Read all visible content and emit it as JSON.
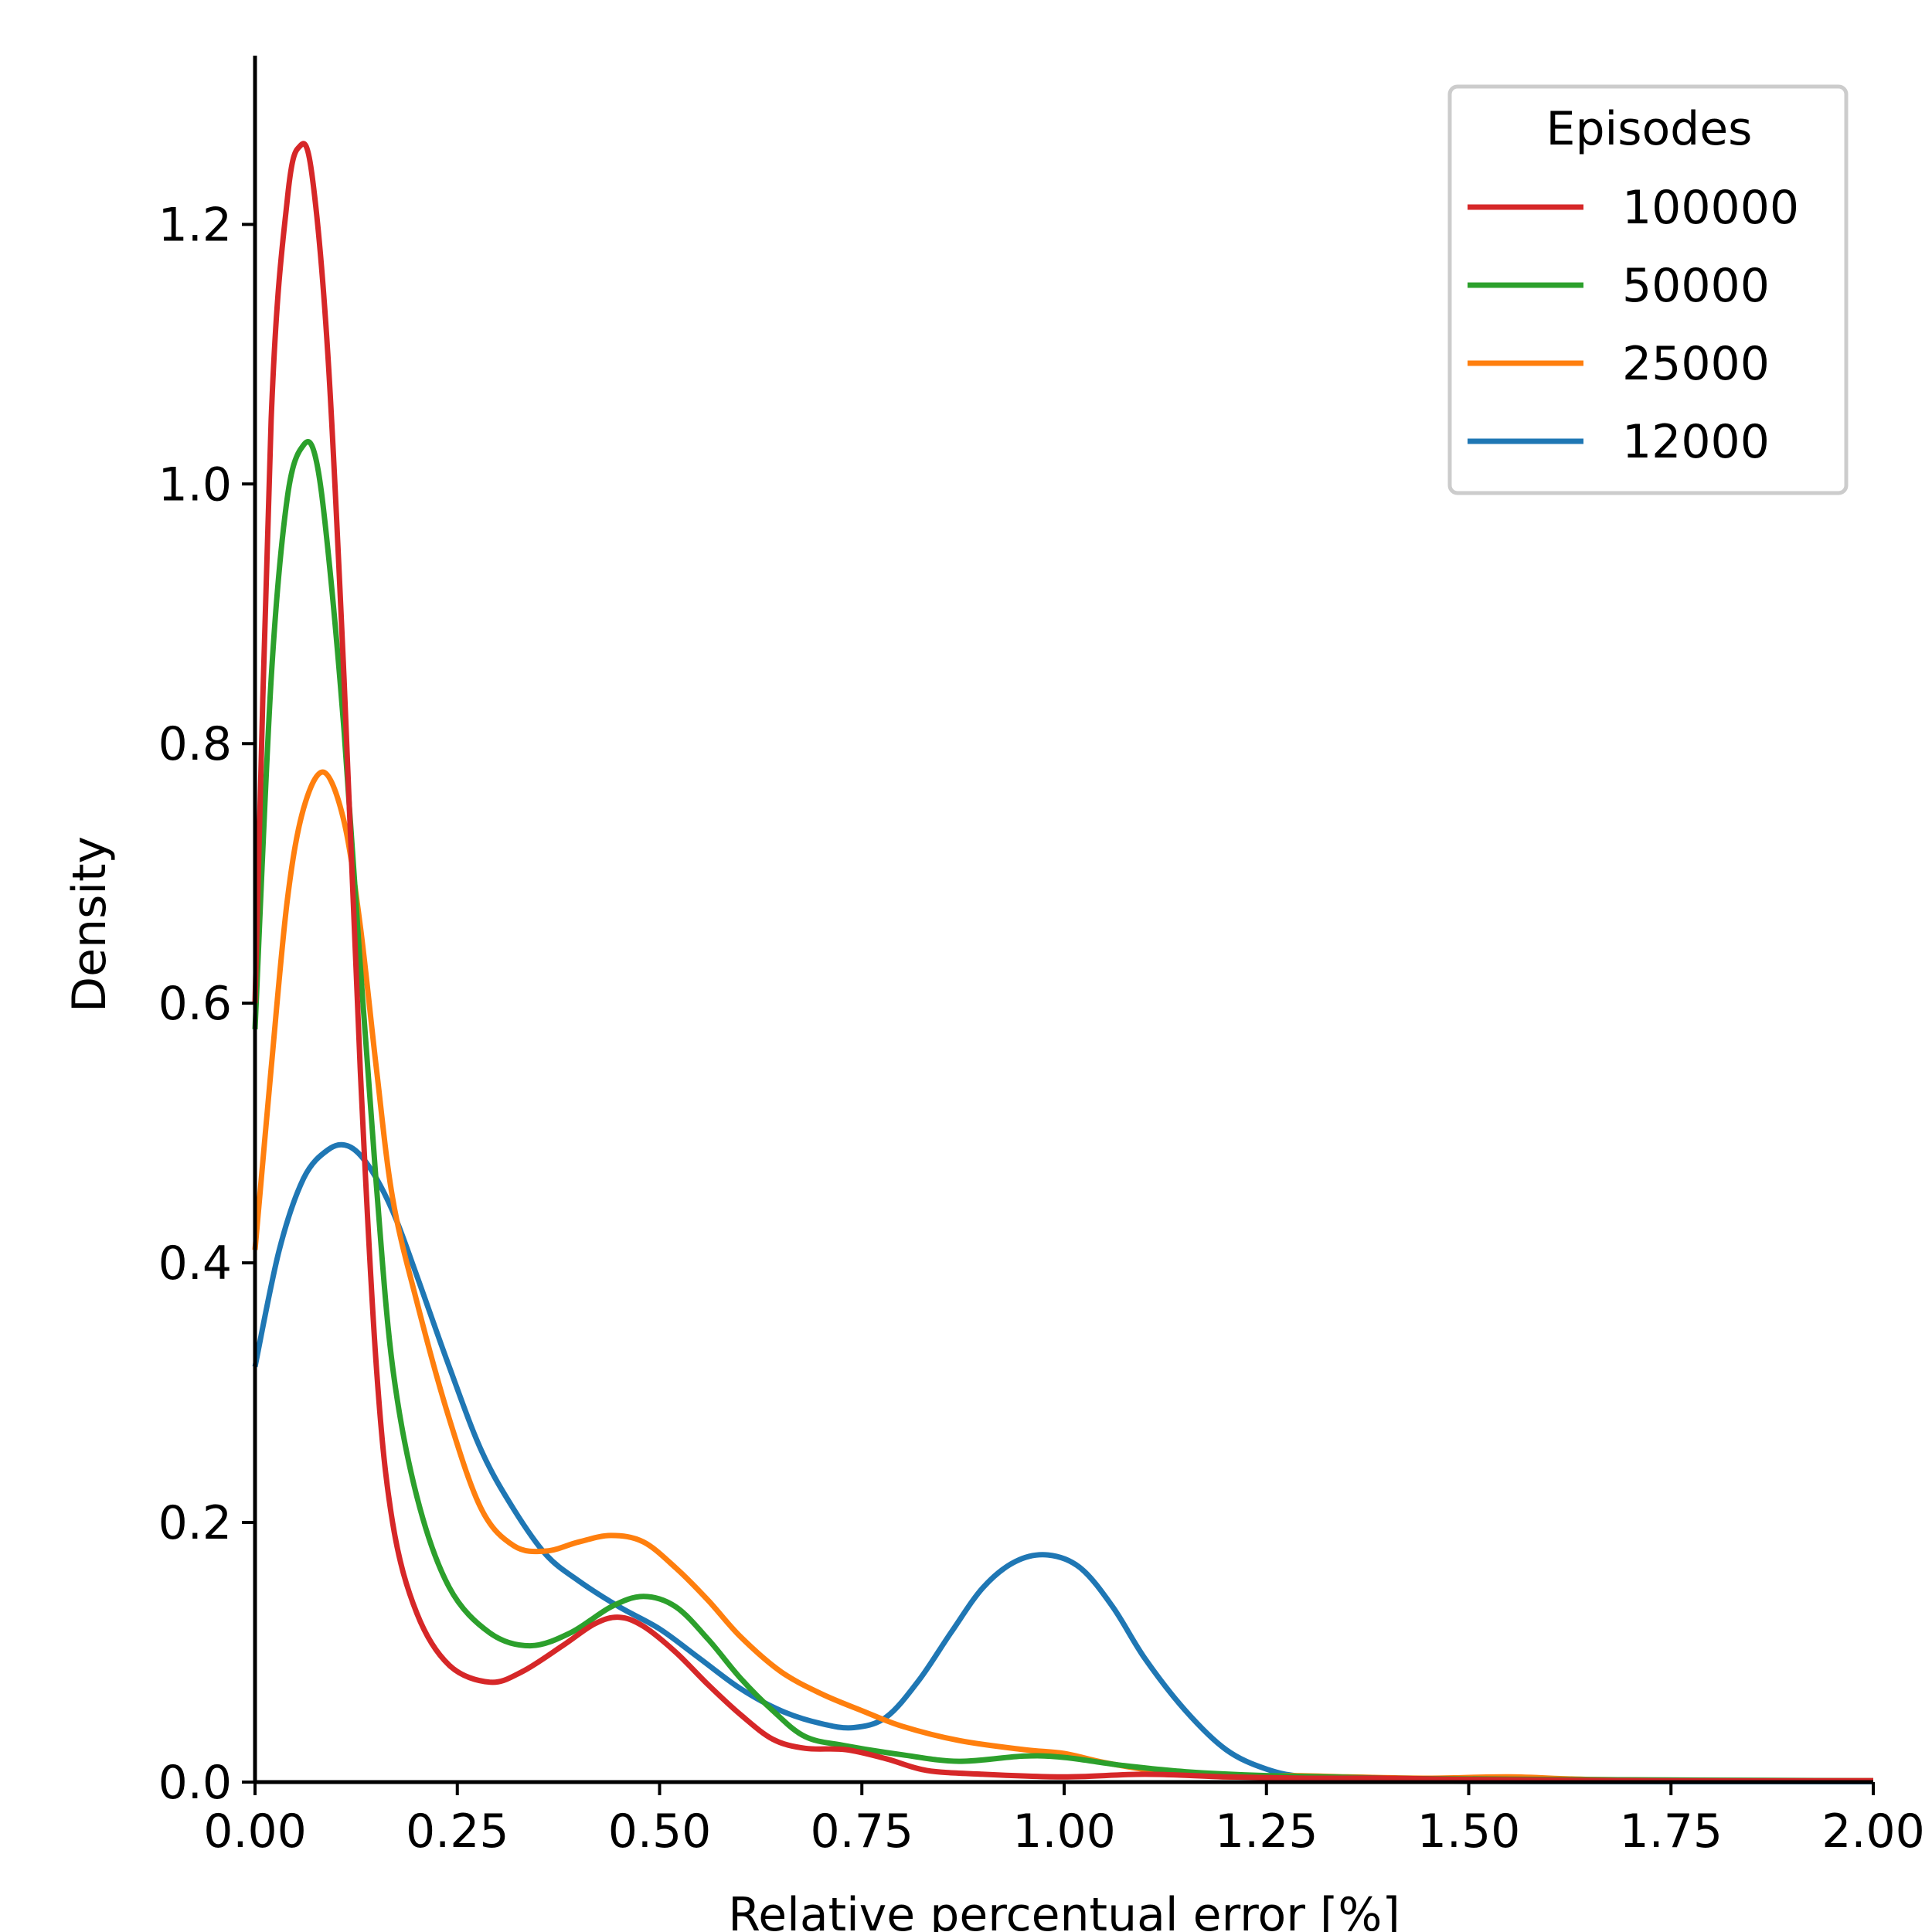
{
  "chart_data": {
    "type": "line",
    "xlabel": "Relative percentual error [%]",
    "ylabel": "Density",
    "xlim": [
      0,
      2.0
    ],
    "ylim": [
      0,
      1.33
    ],
    "xticks": [
      "0.00",
      "0.25",
      "0.50",
      "0.75",
      "1.00",
      "1.25",
      "1.50",
      "1.75",
      "2.00"
    ],
    "yticks": [
      "0.0",
      "0.2",
      "0.4",
      "0.6",
      "0.8",
      "1.0",
      "1.2"
    ],
    "grid": false,
    "legend": {
      "title": "Episodes",
      "position": "top-right"
    },
    "series": [
      {
        "name": "100000",
        "color": "#d62728",
        "points": [
          [
            0,
            0.6
          ],
          [
            0.02,
            1.05
          ],
          [
            0.04,
            1.22
          ],
          [
            0.055,
            1.26
          ],
          [
            0.07,
            1.24
          ],
          [
            0.09,
            1.1
          ],
          [
            0.11,
            0.85
          ],
          [
            0.13,
            0.55
          ],
          [
            0.15,
            0.32
          ],
          [
            0.17,
            0.2
          ],
          [
            0.2,
            0.13
          ],
          [
            0.24,
            0.09
          ],
          [
            0.29,
            0.077
          ],
          [
            0.33,
            0.085
          ],
          [
            0.38,
            0.105
          ],
          [
            0.42,
            0.122
          ],
          [
            0.45,
            0.127
          ],
          [
            0.48,
            0.12
          ],
          [
            0.52,
            0.1
          ],
          [
            0.56,
            0.075
          ],
          [
            0.6,
            0.052
          ],
          [
            0.64,
            0.033
          ],
          [
            0.68,
            0.026
          ],
          [
            0.73,
            0.025
          ],
          [
            0.78,
            0.018
          ],
          [
            0.83,
            0.009
          ],
          [
            0.9,
            0.006
          ],
          [
            1.0,
            0.004
          ],
          [
            1.1,
            0.006
          ],
          [
            1.2,
            0.004
          ],
          [
            1.3,
            0.003
          ],
          [
            1.4,
            0.003
          ],
          [
            1.5,
            0.002
          ],
          [
            1.75,
            0.001
          ],
          [
            2.0,
            0.001
          ]
        ]
      },
      {
        "name": "50000",
        "color": "#2ca02c",
        "points": [
          [
            0,
            0.58
          ],
          [
            0.02,
            0.85
          ],
          [
            0.04,
            0.99
          ],
          [
            0.06,
            1.03
          ],
          [
            0.075,
            1.02
          ],
          [
            0.09,
            0.95
          ],
          [
            0.11,
            0.81
          ],
          [
            0.13,
            0.63
          ],
          [
            0.15,
            0.46
          ],
          [
            0.17,
            0.32
          ],
          [
            0.2,
            0.22
          ],
          [
            0.24,
            0.15
          ],
          [
            0.29,
            0.115
          ],
          [
            0.34,
            0.105
          ],
          [
            0.39,
            0.115
          ],
          [
            0.44,
            0.135
          ],
          [
            0.48,
            0.143
          ],
          [
            0.52,
            0.135
          ],
          [
            0.56,
            0.11
          ],
          [
            0.6,
            0.08
          ],
          [
            0.64,
            0.055
          ],
          [
            0.68,
            0.035
          ],
          [
            0.73,
            0.028
          ],
          [
            0.8,
            0.021
          ],
          [
            0.87,
            0.016
          ],
          [
            0.95,
            0.02
          ],
          [
            1.0,
            0.019
          ],
          [
            1.07,
            0.013
          ],
          [
            1.15,
            0.008
          ],
          [
            1.25,
            0.005
          ],
          [
            1.4,
            0.003
          ],
          [
            1.6,
            0.002
          ],
          [
            2.0,
            0.001
          ]
        ]
      },
      {
        "name": "25000",
        "color": "#ff7f0e",
        "points": [
          [
            0,
            0.41
          ],
          [
            0.02,
            0.55
          ],
          [
            0.04,
            0.68
          ],
          [
            0.06,
            0.75
          ],
          [
            0.085,
            0.778
          ],
          [
            0.11,
            0.74
          ],
          [
            0.13,
            0.66
          ],
          [
            0.15,
            0.55
          ],
          [
            0.17,
            0.45
          ],
          [
            0.2,
            0.37
          ],
          [
            0.24,
            0.28
          ],
          [
            0.28,
            0.21
          ],
          [
            0.32,
            0.182
          ],
          [
            0.36,
            0.178
          ],
          [
            0.4,
            0.185
          ],
          [
            0.44,
            0.19
          ],
          [
            0.48,
            0.185
          ],
          [
            0.52,
            0.165
          ],
          [
            0.56,
            0.14
          ],
          [
            0.6,
            0.112
          ],
          [
            0.65,
            0.085
          ],
          [
            0.7,
            0.068
          ],
          [
            0.75,
            0.055
          ],
          [
            0.8,
            0.043
          ],
          [
            0.87,
            0.032
          ],
          [
            0.95,
            0.025
          ],
          [
            1.0,
            0.022
          ],
          [
            1.05,
            0.015
          ],
          [
            1.12,
            0.008
          ],
          [
            1.2,
            0.004
          ],
          [
            1.28,
            0.005
          ],
          [
            1.35,
            0.004
          ],
          [
            1.45,
            0.003
          ],
          [
            1.55,
            0.004
          ],
          [
            1.65,
            0.002
          ],
          [
            1.8,
            0.001
          ],
          [
            2.0,
            0.001
          ]
        ]
      },
      {
        "name": "12000",
        "color": "#1f77b4",
        "points": [
          [
            0,
            0.32
          ],
          [
            0.03,
            0.41
          ],
          [
            0.06,
            0.465
          ],
          [
            0.09,
            0.487
          ],
          [
            0.115,
            0.49
          ],
          [
            0.14,
            0.475
          ],
          [
            0.17,
            0.44
          ],
          [
            0.2,
            0.39
          ],
          [
            0.24,
            0.32
          ],
          [
            0.28,
            0.255
          ],
          [
            0.32,
            0.21
          ],
          [
            0.36,
            0.175
          ],
          [
            0.4,
            0.155
          ],
          [
            0.45,
            0.135
          ],
          [
            0.5,
            0.118
          ],
          [
            0.55,
            0.095
          ],
          [
            0.6,
            0.072
          ],
          [
            0.65,
            0.055
          ],
          [
            0.7,
            0.045
          ],
          [
            0.74,
            0.042
          ],
          [
            0.78,
            0.05
          ],
          [
            0.82,
            0.078
          ],
          [
            0.86,
            0.115
          ],
          [
            0.9,
            0.15
          ],
          [
            0.94,
            0.17
          ],
          [
            0.98,
            0.175
          ],
          [
            1.02,
            0.165
          ],
          [
            1.06,
            0.135
          ],
          [
            1.1,
            0.095
          ],
          [
            1.15,
            0.055
          ],
          [
            1.2,
            0.025
          ],
          [
            1.25,
            0.01
          ],
          [
            1.3,
            0.004
          ],
          [
            1.4,
            0.001
          ],
          [
            1.6,
            0.0005
          ],
          [
            2.0,
            0.0003
          ]
        ]
      }
    ]
  }
}
